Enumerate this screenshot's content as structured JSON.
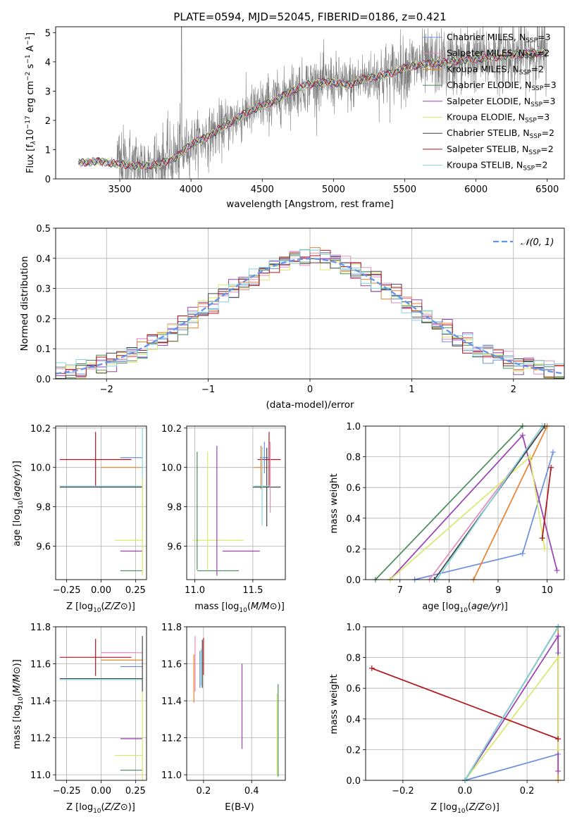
{
  "colors": {
    "chabrier_miles": "#6a8fdc",
    "salpeter_miles": "#e68bbd",
    "kroupa_miles": "#e8822e",
    "chabrier_elodie": "#4c8a5c",
    "salpeter_elodie": "#9b3fb5",
    "kroupa_elodie": "#d8e86a",
    "chabrier_stelib": "#444444",
    "salpeter_stelib": "#b0151c",
    "kroupa_stelib": "#84d4e0",
    "gauss": "#6495ed",
    "grid": "#b0b0b0",
    "spectrum": "#7f7f7f"
  },
  "spectrum": {
    "title": "PLATE=0594, MJD=52045, FIBERID=0186, z=0.421",
    "xlabel": "wavelength [Angstrom, rest frame]",
    "ylabel_parts": [
      "Flux [f",
      "λ",
      "10",
      "−17",
      " erg cm",
      "−2",
      " s",
      "−1",
      " A",
      "−1",
      "]"
    ],
    "legend": [
      {
        "key": "chabrier_miles",
        "label": "Chabrier MILES, N",
        "sub": "SSP",
        "tail": "=3"
      },
      {
        "key": "salpeter_miles",
        "label": "Salpeter MILES, N",
        "sub": "SSP",
        "tail": "=2"
      },
      {
        "key": "kroupa_miles",
        "label": "Kroupa MILES, N",
        "sub": "SSP",
        "tail": "=2"
      },
      {
        "key": "chabrier_elodie",
        "label": "Chabrier ELODIE, N",
        "sub": "SSP",
        "tail": "=3"
      },
      {
        "key": "salpeter_elodie",
        "label": "Salpeter ELODIE, N",
        "sub": "SSP",
        "tail": "=3"
      },
      {
        "key": "kroupa_elodie",
        "label": "Kroupa ELODIE, N",
        "sub": "SSP",
        "tail": "=3"
      },
      {
        "key": "chabrier_stelib",
        "label": "Chabrier STELIB, N",
        "sub": "SSP",
        "tail": "=2"
      },
      {
        "key": "salpeter_stelib",
        "label": "Salpeter STELIB, N",
        "sub": "SSP",
        "tail": "=2"
      },
      {
        "key": "kroupa_stelib",
        "label": "Kroupa STELIB, N",
        "sub": "SSP",
        "tail": "=2"
      }
    ]
  },
  "chart_data": [
    {
      "id": "spectrum",
      "type": "line",
      "title": "PLATE=0594, MJD=52045, FIBERID=0186, z=0.421",
      "xlabel": "wavelength [Angstrom, rest frame]",
      "ylabel": "Flux [f_λ 10^-17 erg cm^-2 s^-1 A^-1]",
      "xlim": [
        3050,
        6620
      ],
      "ylim": [
        0,
        5.2
      ],
      "xticks": [
        3500,
        4000,
        4500,
        5000,
        5500,
        6000,
        6500
      ],
      "yticks": [
        0,
        1,
        2,
        3,
        4,
        5
      ],
      "data_range": [
        3210,
        6500
      ],
      "model_continuum": {
        "x": [
          3210,
          3350,
          3500,
          3600,
          3700,
          3800,
          3900,
          4000,
          4100,
          4200,
          4300,
          4400,
          4500,
          4600,
          4700,
          4800,
          4900,
          5000,
          5100,
          5200,
          5300,
          5400,
          5500,
          5600,
          5800,
          6000,
          6200,
          6400,
          6500
        ],
        "y": [
          0.55,
          0.6,
          0.5,
          0.45,
          0.45,
          0.55,
          0.75,
          1.2,
          1.4,
          1.7,
          2.0,
          2.3,
          2.5,
          2.7,
          3.0,
          3.2,
          3.3,
          3.3,
          3.2,
          3.4,
          3.5,
          3.6,
          3.8,
          3.9,
          4.0,
          4.1,
          4.2,
          4.3,
          4.3
        ]
      },
      "series": [
        "Chabrier MILES",
        "Salpeter MILES",
        "Kroupa MILES",
        "Chabrier ELODIE",
        "Salpeter ELODIE",
        "Kroupa ELODIE",
        "Chabrier STELIB",
        "Salpeter STELIB",
        "Kroupa STELIB"
      ]
    },
    {
      "id": "residuals",
      "type": "line",
      "xlabel": "(data-model)/error",
      "ylabel": "Normed distribution",
      "xlim": [
        -2.5,
        2.5
      ],
      "ylim": [
        0,
        0.5
      ],
      "xticks": [
        -2,
        -1,
        0,
        1,
        2
      ],
      "yticks": [
        0.0,
        0.1,
        0.2,
        0.3,
        0.4,
        0.5
      ],
      "legend": [
        "𝒩(0, 1)"
      ],
      "bin_width": 0.1
    },
    {
      "id": "age_vs_Z",
      "type": "scatter",
      "xlabel": "Z [log10(Z/Z⊙)]",
      "ylabel": "age [log10(age/yr)]",
      "xlim": [
        -0.33,
        0.33
      ],
      "ylim": [
        9.43,
        10.21
      ],
      "xticks": [
        -0.25,
        0.0,
        0.25
      ],
      "yticks": [
        9.6,
        9.8,
        10.0,
        10.2
      ],
      "points": [
        {
          "key": "salpeter_stelib",
          "x": -0.04,
          "y": 10.04,
          "xerr": 0.26,
          "yerr": 0.14
        },
        {
          "key": "chabrier_miles",
          "x": 0.22,
          "y": 10.05,
          "xerr": 0.08,
          "yerr": 0.0
        },
        {
          "key": "kroupa_miles",
          "x": 0.15,
          "y": 10.0,
          "xerr": 0.15,
          "yerr": 0.0
        },
        {
          "key": "chabrier_stelib",
          "x": 0.0,
          "y": 9.9,
          "xerr": 0.3,
          "yerr": 0.0
        },
        {
          "key": "kroupa_stelib",
          "x": 0.0,
          "y": 9.905,
          "xerr": 0.3,
          "yerr": 0.0
        },
        {
          "key": "kroupa_elodie",
          "x": 0.2,
          "y": 9.63,
          "xerr": 0.1,
          "yerr": 0.0
        },
        {
          "key": "salpeter_elodie",
          "x": 0.22,
          "y": 9.575,
          "xerr": 0.08,
          "yerr": 0.0
        },
        {
          "key": "chabrier_elodie",
          "x": 0.22,
          "y": 9.475,
          "xerr": 0.08,
          "yerr": 0.0
        },
        {
          "key": "kroupa_stelib",
          "x": 0.3,
          "y": 9.95,
          "xerr": 0.0,
          "yerr": 0.25
        },
        {
          "key": "kroupa_elodie",
          "x": 0.3,
          "y": 9.7,
          "xerr": 0.0,
          "yerr": 0.25
        }
      ]
    },
    {
      "id": "age_vs_mass",
      "type": "scatter",
      "xlabel": "mass [log10(M/M⊙)]",
      "ylabel": "",
      "xlim": [
        10.93,
        11.78
      ],
      "ylim": [
        9.43,
        10.21
      ],
      "xticks": [
        11.0,
        11.5
      ],
      "yticks": [
        9.6,
        9.8,
        10.0,
        10.2
      ],
      "points": [
        {
          "key": "chabrier_elodie",
          "x": 11.2,
          "y": 9.475,
          "xerr": 0.18,
          "yerr": 0.0
        },
        {
          "key": "kroupa_elodie",
          "x": 11.2,
          "y": 9.63,
          "xerr": 0.22,
          "yerr": 0.0
        },
        {
          "key": "salpeter_elodie",
          "x": 11.4,
          "y": 9.575,
          "xerr": 0.16,
          "yerr": 0.0
        },
        {
          "key": "chabrier_elodie",
          "x": 11.02,
          "y": 9.78,
          "xerr": 0.0,
          "yerr": 0.3
        },
        {
          "key": "kroupa_elodie",
          "x": 11.11,
          "y": 9.78,
          "xerr": 0.0,
          "yerr": 0.3
        },
        {
          "key": "salpeter_elodie",
          "x": 11.19,
          "y": 9.78,
          "xerr": 0.0,
          "yerr": 0.33
        },
        {
          "key": "salpeter_stelib",
          "x": 11.64,
          "y": 10.04,
          "xerr": 0.1,
          "yerr": 0.14
        },
        {
          "key": "chabrier_miles",
          "x": 11.6,
          "y": 10.05,
          "xerr": 0.04,
          "yerr": 0.08
        },
        {
          "key": "kroupa_miles",
          "x": 11.57,
          "y": 10.0,
          "xerr": 0.06,
          "yerr": 0.11
        },
        {
          "key": "chabrier_stelib",
          "x": 11.62,
          "y": 9.9,
          "xerr": 0.12,
          "yerr": 0.2
        },
        {
          "key": "kroupa_stelib",
          "x": 11.58,
          "y": 9.905,
          "xerr": 0.07,
          "yerr": 0.2
        },
        {
          "key": "salpeter_miles",
          "x": 11.65,
          "y": 9.95,
          "xerr": 0.0,
          "yerr": 0.18
        }
      ]
    },
    {
      "id": "weight_vs_age",
      "type": "line",
      "xlabel": "age [log10(age/yr)]",
      "ylabel": "mass weight",
      "xlim": [
        6.3,
        10.35
      ],
      "ylim": [
        0,
        1
      ],
      "xticks": [
        7,
        8,
        9,
        10
      ],
      "yticks": [
        0.0,
        0.2,
        0.4,
        0.6,
        0.8,
        1.0
      ],
      "series": [
        {
          "key": "chabrier_miles",
          "x": [
            7.3,
            9.5,
            10.12
          ],
          "y": [
            0.0,
            0.17,
            0.83
          ]
        },
        {
          "key": "salpeter_miles",
          "x": [
            7.6,
            9.95
          ],
          "y": [
            0.0,
            1.0
          ]
        },
        {
          "key": "kroupa_miles",
          "x": [
            8.5,
            10.0
          ],
          "y": [
            0.0,
            1.0
          ]
        },
        {
          "key": "chabrier_elodie",
          "x": [
            6.5,
            9.5
          ],
          "y": [
            0.0,
            1.0
          ]
        },
        {
          "key": "salpeter_elodie",
          "x": [
            6.8,
            9.5,
            10.2
          ],
          "y": [
            0.0,
            0.94,
            0.06
          ]
        },
        {
          "key": "kroupa_elodie",
          "x": [
            6.8,
            9.65,
            9.95
          ],
          "y": [
            0.0,
            0.8,
            0.2
          ]
        },
        {
          "key": "chabrier_stelib",
          "x": [
            7.7,
            9.95
          ],
          "y": [
            0.0,
            1.0
          ]
        },
        {
          "key": "salpeter_stelib",
          "x": [
            9.9,
            10.08
          ],
          "y": [
            0.27,
            0.73
          ]
        },
        {
          "key": "kroupa_stelib",
          "x": [
            7.75,
            9.9
          ],
          "y": [
            0.0,
            1.0
          ]
        }
      ]
    },
    {
      "id": "mass_vs_Z",
      "type": "scatter",
      "xlabel": "Z [log10(Z/Z⊙)]",
      "ylabel": "mass [log10(M/M⊙)]",
      "xlim": [
        -0.33,
        0.33
      ],
      "ylim": [
        10.97,
        11.8
      ],
      "xticks": [
        -0.25,
        0.0,
        0.25
      ],
      "yticks": [
        11.0,
        11.2,
        11.4,
        11.6,
        11.8
      ],
      "points": [
        {
          "key": "salpeter_stelib",
          "x": -0.04,
          "y": 11.635,
          "xerr": 0.26,
          "yerr": 0.1
        },
        {
          "key": "salpeter_miles",
          "x": 0.15,
          "y": 11.66,
          "xerr": 0.15,
          "yerr": 0.0
        },
        {
          "key": "kroupa_miles",
          "x": 0.15,
          "y": 11.62,
          "xerr": 0.15,
          "yerr": 0.0
        },
        {
          "key": "chabrier_miles",
          "x": 0.22,
          "y": 11.585,
          "xerr": 0.08,
          "yerr": 0.0
        },
        {
          "key": "chabrier_stelib",
          "x": 0.0,
          "y": 11.52,
          "xerr": 0.3,
          "yerr": 0.0
        },
        {
          "key": "kroupa_stelib",
          "x": 0.0,
          "y": 11.515,
          "xerr": 0.3,
          "yerr": 0.0
        },
        {
          "key": "salpeter_elodie",
          "x": 0.22,
          "y": 11.195,
          "xerr": 0.08,
          "yerr": 0.0
        },
        {
          "key": "kroupa_elodie",
          "x": 0.2,
          "y": 11.105,
          "xerr": 0.1,
          "yerr": 0.0
        },
        {
          "key": "chabrier_elodie",
          "x": 0.22,
          "y": 11.025,
          "xerr": 0.08,
          "yerr": 0.0
        },
        {
          "key": "chabrier_stelib",
          "x": 0.3,
          "y": 11.6,
          "xerr": 0.0,
          "yerr": 0.15
        },
        {
          "key": "kroupa_elodie",
          "x": 0.3,
          "y": 11.2,
          "xerr": 0.0,
          "yerr": 0.25
        }
      ]
    },
    {
      "id": "mass_vs_ebv",
      "type": "scatter",
      "xlabel": "E(B-V)",
      "ylabel": "",
      "xlim": [
        0.13,
        0.54
      ],
      "ylim": [
        10.97,
        11.8
      ],
      "xticks": [
        0.2,
        0.4
      ],
      "yticks": [
        11.0,
        11.2,
        11.4,
        11.6,
        11.8
      ],
      "points": [
        {
          "key": "kroupa_miles",
          "x": 0.16,
          "y": 11.52,
          "xerr": 0.0,
          "yerr": 0.13
        },
        {
          "key": "salpeter_miles",
          "x": 0.165,
          "y": 11.6,
          "xerr": 0.0,
          "yerr": 0.15
        },
        {
          "key": "chabrier_miles",
          "x": 0.185,
          "y": 11.57,
          "xerr": 0.0,
          "yerr": 0.1
        },
        {
          "key": "kroupa_stelib",
          "x": 0.19,
          "y": 11.58,
          "xerr": 0.0,
          "yerr": 0.1
        },
        {
          "key": "chabrier_stelib",
          "x": 0.195,
          "y": 11.6,
          "xerr": 0.0,
          "yerr": 0.13
        },
        {
          "key": "salpeter_stelib",
          "x": 0.2,
          "y": 11.64,
          "xerr": 0.0,
          "yerr": 0.1
        },
        {
          "key": "salpeter_elodie",
          "x": 0.36,
          "y": 11.37,
          "xerr": 0.0,
          "yerr": 0.23
        },
        {
          "key": "kroupa_elodie",
          "x": 0.505,
          "y": 11.22,
          "xerr": 0.0,
          "yerr": 0.22
        },
        {
          "key": "chabrier_elodie",
          "x": 0.51,
          "y": 11.24,
          "xerr": 0.0,
          "yerr": 0.25
        }
      ]
    },
    {
      "id": "weight_vs_Z",
      "type": "line",
      "xlabel": "Z [log10(Z/Z⊙)]",
      "ylabel": "mass weight",
      "xlim": [
        -0.32,
        0.32
      ],
      "ylim": [
        0,
        1
      ],
      "xticks": [
        -0.2,
        0.0,
        0.2
      ],
      "yticks": [
        0.0,
        0.2,
        0.4,
        0.6,
        0.8,
        1.0
      ],
      "series": [
        {
          "key": "chabrier_miles",
          "x": [
            0.0,
            0.3,
            0.3
          ],
          "y": [
            0.0,
            0.17,
            0.83
          ]
        },
        {
          "key": "salpeter_miles",
          "x": [
            0.0,
            0.3
          ],
          "y": [
            0.0,
            1.0
          ]
        },
        {
          "key": "kroupa_miles",
          "x": [
            0.3,
            0.3
          ],
          "y": [
            0.0,
            1.0
          ]
        },
        {
          "key": "chabrier_elodie",
          "x": [
            0.0,
            0.3
          ],
          "y": [
            0.0,
            1.0
          ]
        },
        {
          "key": "salpeter_elodie",
          "x": [
            0.0,
            0.3,
            0.3
          ],
          "y": [
            0.0,
            0.94,
            0.06
          ]
        },
        {
          "key": "kroupa_elodie",
          "x": [
            0.0,
            0.3,
            0.3
          ],
          "y": [
            0.0,
            0.8,
            0.2
          ]
        },
        {
          "key": "chabrier_stelib",
          "x": [
            0.0,
            0.3
          ],
          "y": [
            0.0,
            1.0
          ]
        },
        {
          "key": "salpeter_stelib",
          "x": [
            -0.3,
            0.3
          ],
          "y": [
            0.73,
            0.27
          ]
        },
        {
          "key": "kroupa_stelib",
          "x": [
            0.0,
            0.3
          ],
          "y": [
            0.0,
            1.0
          ]
        }
      ]
    }
  ]
}
